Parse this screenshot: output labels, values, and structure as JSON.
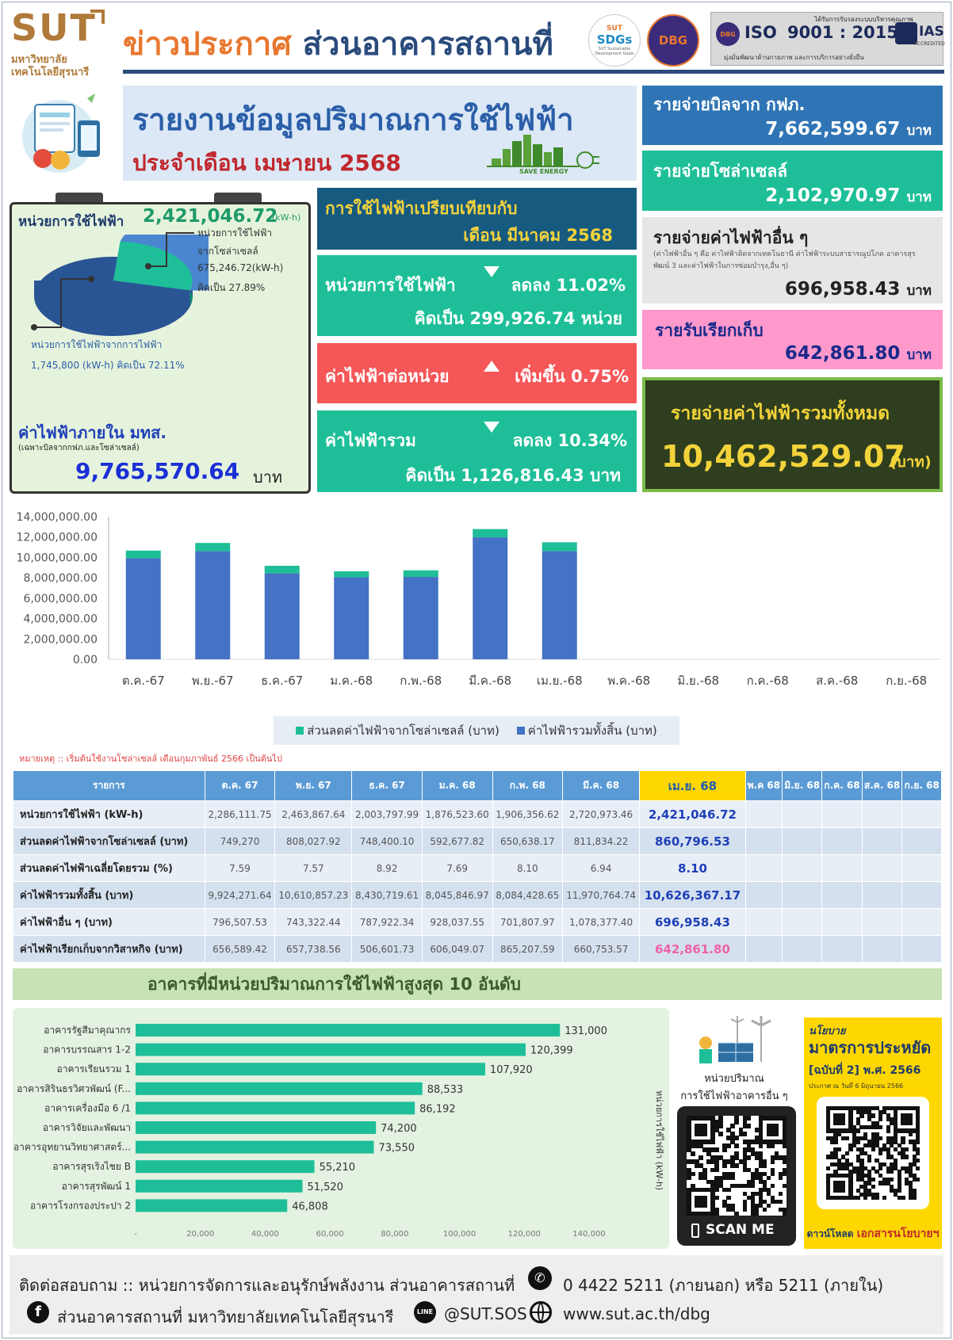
{
  "header": {
    "logo_text": "SUT",
    "logo_sub1": "มหาวิทยาลัย",
    "logo_sub2": "เทคโนโลยีสุรนารี",
    "title_a": "ข่าวประกาศ",
    "title_b": "ส่วนอาคารสถานที่",
    "sdgs_top": "SUT",
    "sdgs_main": "SDGs",
    "sdgs_sub": "SUT Sustainable Development Goals",
    "dbg_logo": "DBG",
    "iso_cert_text": "ได้รับการรับรองระบบบริหารคุณภาพ",
    "iso_label": "ISO",
    "iso_number": "9001 : 2015",
    "iso_ias": "IAS",
    "iso_ias_sub": "ACCREDITED",
    "iso_bottom": "มุ่งมั่นพัฒนาด้านกายภาพ และการบริการอย่างยั่งยืน"
  },
  "report": {
    "title": "รายงานข้อมูลปริมาณการใช้ไฟฟ้า",
    "month": "ประจำเดือน เมษายน 2568",
    "save_energy": "SAVE ENERGY"
  },
  "usage": {
    "label": "หน่วยการใช้ไฟฟ้า",
    "value": "2,421,046.72",
    "unit": "(kW-h)",
    "solar_label1": "หน่วยการใช้ไฟฟ้า",
    "solar_label2": "จากโซล่าเซลล์",
    "solar_value": "675,246.72(kW-h)",
    "solar_pct": "คิดเป็น  27.89%",
    "grid_label": "หน่วยการใช้ไฟฟ้าจากการไฟฟ้า",
    "grid_value": "1,745,800  (kW-h)  คิดเป็น  72.11%",
    "solar_share": 27.89,
    "grid_share": 72.11,
    "inside_label": "ค่าไฟฟ้าภายใน มทส.",
    "inside_note": "(เฉพาะบิลจากกฟภ.และโซล่าเซลล์)",
    "inside_value": "9,765,570.64",
    "inside_unit": "บาท"
  },
  "compare": {
    "head1": "การใช้ไฟฟ้าเปรียบเทียบกับ",
    "head2": "เดือน มีนาคม 2568",
    "unit_label": "หน่วยการใช้ไฟฟ้า",
    "unit_change": "ลดลง 11.02%",
    "unit_detail": "คิดเป็น  299,926.74  หน่วย",
    "price_label": "ค่าไฟฟ้าต่อหน่วย",
    "price_change": "เพิ่มขึ้น 0.75%",
    "total_label": "ค่าไฟฟ้ารวม",
    "total_change": "ลดลง 10.34%",
    "total_detail": "คิดเป็น  1,126,816.43  บาท"
  },
  "right": {
    "pea_label": "รายจ่ายบิลจาก กฟภ.",
    "pea_value": "7,662,599.67",
    "solar_label": "รายจ่ายโซล่าเซลล์",
    "solar_value": "2,102,970.97",
    "other_label": "รายจ่ายค่าไฟฟ้าอื่น ๆ",
    "other_note": "(ค่าไฟฟ้าอื่น ๆ คือ ค่าไฟฟ้าติดจากเทคโนธานี ค่าไฟฟ้าระบบสาธารณูปโภค อาคารสุรพัฒน์ 3 และค่าไฟฟ้าในการซ่อมบำรุง,อื่น ๆ)",
    "other_value": "696,958.43",
    "collect_label": "รายรับเรียกเก็บ",
    "collect_value": "642,861.80",
    "baht": "บาท",
    "total_label": "รายจ่ายค่าไฟฟ้ารวมทั้งหมด",
    "total_value": "10,462,529.07",
    "total_unit": "(บาท)"
  },
  "chart_data": [
    {
      "type": "bar",
      "stacked": true,
      "categories": [
        "ต.ค.-67",
        "พ.ย.-67",
        "ธ.ค.-67",
        "ม.ค.-68",
        "ก.พ.-68",
        "มี.ค.-68",
        "เม.ย.-68",
        "พ.ค.-68",
        "มิ.ย.-68",
        "ก.ค.-68",
        "ส.ค.-68",
        "ก.ย.-68"
      ],
      "series": [
        {
          "name": "ค่าไฟฟ้ารวมทั้งสิ้น (บาท)",
          "color": "#4472c4",
          "values": [
            9924271.64,
            10610857.23,
            8430719.61,
            8045846.97,
            8084428.65,
            11970764.74,
            10626367.17,
            null,
            null,
            null,
            null,
            null
          ]
        },
        {
          "name": "ส่วนลดค่าไฟฟ้าจากโซล่าเซลล์ (บาท)",
          "color": "#1ebf98",
          "values": [
            749270,
            808027.92,
            748400.1,
            592677.82,
            650638.17,
            811834.22,
            860796.53,
            null,
            null,
            null,
            null,
            null
          ]
        }
      ],
      "y_ticks": [
        "0.00",
        "2,000,000.00",
        "4,000,000.00",
        "6,000,000.00",
        "8,000,000.00",
        "10,000,000.00",
        "12,000,000.00",
        "14,000,000.00"
      ],
      "ylim": [
        0,
        14000000
      ],
      "legend": "bottom"
    },
    {
      "type": "bar",
      "orientation": "horizontal",
      "categories": [
        "อาคารรัฐสีมาคุณากร",
        "อาคารบรรณสาร 1-2",
        "อาคารเรียนรวม 1",
        "อาคารสิรินธรวิศวพัฒน์ (F...",
        "อาคารเครื่องมือ  6  /1",
        "อาคารวิจัยและพัฒนา",
        "อาคารอุทยานวิทยาศาสตร์...",
        "อาคารสุรเริงไชย  B",
        "อาคารสุรพัฒน์ 1",
        "อาคารโรงกรองประปา 2"
      ],
      "values": [
        131000,
        120399,
        107920,
        88533,
        86192,
        74200,
        73550,
        55210,
        51520,
        46808
      ],
      "value_labels": [
        "131,000",
        "120,399",
        "107,920",
        "88,533",
        "86,192",
        "74,200",
        "73,550",
        "55,210",
        "51,520",
        "46,808"
      ],
      "x_ticks": [
        "-",
        "20,000",
        "40,000",
        "60,000",
        "80,000",
        "100,000",
        "120,000",
        "140,000"
      ],
      "xlim": [
        0,
        140000
      ],
      "ylabel": "หน่วยการใช้ไฟฟ้า (kW-h)",
      "color": "#1ebf98"
    }
  ],
  "note": "หมายเหตุ :: เริ่มต้นใช้งานโซล่าเซลล์ เดือนกุมภาพันธ์ 2566 เป็นต้นไป",
  "table": {
    "header": [
      "รายการ",
      "ต.ค. 67",
      "พ.ย. 67",
      "ธ.ค. 67",
      "ม.ค. 68",
      "ก.พ. 68",
      "มี.ค. 68",
      "เม.ย. 68",
      "พ.ค 68",
      "มิ.ย. 68",
      "ก.ค. 68",
      "ส.ค. 68",
      "ก.ย. 68"
    ],
    "rows": [
      [
        "หน่วยการใช้ไฟฟ้า (kW-h)",
        "2,286,111.75",
        "2,463,867.64",
        "2,003,797.99",
        "1,876,523.60",
        "1,906,356.62",
        "2,720,973.46",
        "2,421,046.72",
        "",
        "",
        "",
        "",
        ""
      ],
      [
        "ส่วนลดค่าไฟฟ้าจากโซล่าเซลล์ (บาท)",
        "749,270",
        "808,027.92",
        "748,400.10",
        "592,677.82",
        "650,638.17",
        "811,834.22",
        "860,796.53",
        "",
        "",
        "",
        "",
        ""
      ],
      [
        "ส่วนลดค่าไฟฟ้าเฉลี่ยโดยรวม (%)",
        "7.59",
        "7.57",
        "8.92",
        "7.69",
        "8.10",
        "6.94",
        "8.10",
        "",
        "",
        "",
        "",
        ""
      ],
      [
        "ค่าไฟฟ้ารวมทั้งสิ้น (บาท)",
        "9,924,271.64",
        "10,610,857.23",
        "8,430,719.61",
        "8,045,846.97",
        "8,084,428.65",
        "11,970,764.74",
        "10,626,367.17",
        "",
        "",
        "",
        "",
        ""
      ],
      [
        "ค่าไฟฟ้าอื่น ๆ (บาท)",
        "796,507.53",
        "743,322.44",
        "787,922.34",
        "928,037.55",
        "701,807.97",
        "1,078,377.40",
        "696,958.43",
        "",
        "",
        "",
        "",
        ""
      ],
      [
        "ค่าไฟฟ้าเรียกเก็บจากวิสาหกิจ (บาท)",
        "656,589.42",
        "657,738.56",
        "506,601.73",
        "606,049.07",
        "865,207.59",
        "660,753.57",
        "642,861.80",
        "",
        "",
        "",
        "",
        ""
      ]
    ]
  },
  "top10_title": "อาคารที่มีหน่วยปริมาณการใช้ไฟฟ้าสูงสุด 10 อันดับ",
  "qr1": {
    "line1": "หน่วยปริมาณ",
    "line2": "การใช้ไฟฟ้าอาคารอื่น  ๆ",
    "scan": "SCAN ME"
  },
  "policy": {
    "tag": "นโยบาย",
    "title": "มาตรการประหยัด",
    "edition": "[ฉบับที่ 2] พ.ศ. 2566",
    "date": "ประกาศ ณ วันที่ 6 มิถุนายน 2566",
    "download_a": "ดาวน์โหลด",
    "download_b": "เอกสารนโยบายฯ"
  },
  "footer": {
    "contact": "ติดต่อสอบถาม :: หน่วยการจัดการและอนุรักษ์พลังงาน ส่วนอาคารสถานที่",
    "phone": "0 4422 5211 (ภายนอก) หรือ 5211 (ภายใน)",
    "facebook": "ส่วนอาคารสถานที่  มหาวิทยาลัยเทคโนโลยีสุรนารี",
    "line_label": "LINE",
    "line_id": "@SUT.SOS",
    "web": "www.sut.ac.th/dbg"
  },
  "colors": {
    "navy": "#2a4b7c",
    "orange": "#e8772e",
    "green": "#1ebf98",
    "red": "#f55658",
    "blue": "#4472c4",
    "gold": "#f3d33a"
  }
}
